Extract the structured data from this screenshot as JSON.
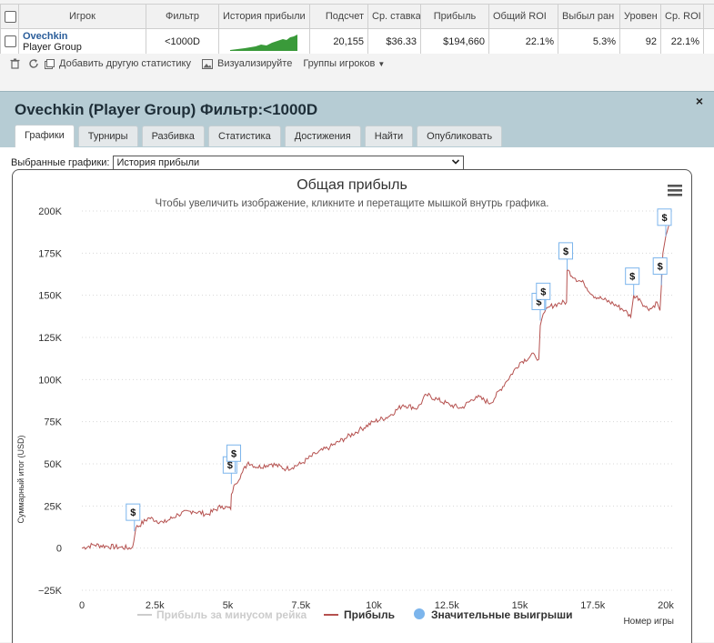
{
  "table": {
    "headers": [
      "Игрок",
      "Фильтр",
      "История прибыли",
      "Подсчет",
      "Ср. ставка",
      "Прибыль",
      "Общий ROI",
      "Выбыл ран",
      "Уровен",
      "Ср. ROI"
    ],
    "row": {
      "player": "Ovechkin",
      "group": "Player Group",
      "filter": "<1000D",
      "count": "20,155",
      "avg_stake": "$36.33",
      "profit": "$194,660",
      "total_roi": "22.1%",
      "early_out": "5.3%",
      "level": "92",
      "avg_roi": "22.1%"
    }
  },
  "toolbar": {
    "add_stats": "Добавить другую статистику",
    "visualize": "Визуализируйте",
    "player_groups": "Группы игроков"
  },
  "panel": {
    "title": "Ovechkin (Player Group) Фильтр:<1000D",
    "close": "×",
    "tabs": [
      "Графики",
      "Турниры",
      "Разбивка",
      "Статистика",
      "Достижения",
      "Найти",
      "Опубликовать"
    ],
    "selected_label": "Выбранные графики:",
    "selected_value": "История прибыли"
  },
  "chart_data": {
    "type": "line",
    "title": "Общая прибыль",
    "subtitle": "Чтобы увеличить изображение, кликните и перетащите мышкой внутрь графика.",
    "ylabel": "Суммарный итог (USD)",
    "xlabel": "Номер игры",
    "xlim": [
      0,
      20155
    ],
    "ylim": [
      -25000,
      200000
    ],
    "x_ticks": [
      "0",
      "2.5k",
      "5k",
      "7.5k",
      "10k",
      "12.5k",
      "15k",
      "17.5k",
      "20k"
    ],
    "y_ticks": [
      "−25K",
      "0",
      "25K",
      "50K",
      "75K",
      "100K",
      "125K",
      "150K",
      "175K",
      "200K"
    ],
    "series": [
      {
        "name": "Прибыль за минусом рейка",
        "visible": false,
        "color": "#cccccc",
        "x": [],
        "y": []
      },
      {
        "name": "Прибыль",
        "color": "#b5514f",
        "x": [
          0,
          400,
          900,
          1300,
          1700,
          1780,
          1850,
          2300,
          2800,
          3300,
          3800,
          4300,
          4800,
          5100,
          5120,
          5250,
          5500,
          5700,
          6000,
          6500,
          7000,
          7500,
          8000,
          8500,
          9000,
          9500,
          10000,
          10500,
          11000,
          11500,
          11800,
          12200,
          12600,
          13000,
          13500,
          14000,
          14500,
          15000,
          15500,
          15650,
          15700,
          15850,
          16000,
          16300,
          16600,
          16620,
          16900,
          17200,
          17500,
          17800,
          18200,
          18600,
          18800,
          18900,
          19100,
          19300,
          19500,
          19700,
          19800,
          19850,
          19900,
          20000,
          20155
        ],
        "y": [
          0,
          2000,
          1000,
          500,
          0,
          4000,
          12000,
          18000,
          15000,
          20000,
          22000,
          20000,
          25000,
          23000,
          32000,
          38000,
          45000,
          51000,
          48000,
          50000,
          47000,
          50000,
          56000,
          60000,
          65000,
          70000,
          75000,
          78000,
          85000,
          83000,
          91000,
          88000,
          85000,
          83000,
          90000,
          86000,
          98000,
          110000,
          115000,
          112000,
          132000,
          140000,
          143000,
          145000,
          146000,
          165000,
          160000,
          157000,
          150000,
          148000,
          145000,
          141000,
          137000,
          150000,
          148000,
          143000,
          142000,
          146000,
          141000,
          156000,
          175000,
          185000,
          194660
        ]
      }
    ],
    "scatter": {
      "name": "Значительные выигрыши",
      "color": "#7cb5ec",
      "symbol": "$",
      "points": [
        {
          "x": 1800,
          "y": 10000
        },
        {
          "x": 5120,
          "y": 38000
        },
        {
          "x": 5250,
          "y": 45000
        },
        {
          "x": 15700,
          "y": 135000
        },
        {
          "x": 15850,
          "y": 141000
        },
        {
          "x": 16620,
          "y": 165000
        },
        {
          "x": 18900,
          "y": 150000
        },
        {
          "x": 19850,
          "y": 156000
        },
        {
          "x": 20000,
          "y": 185000
        }
      ]
    },
    "legend_position": "bottom-center",
    "grid": true
  }
}
